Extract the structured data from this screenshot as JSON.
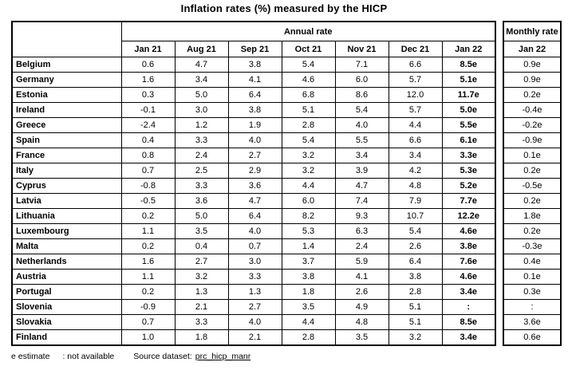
{
  "title": "Inflation rates (%) measured by the HICP",
  "chart_data": {
    "type": "table",
    "title": "Inflation rates (%) measured by the HICP",
    "annual_rate_label": "Annual rate",
    "monthly_rate_label": "Monthly rate",
    "annual_columns": [
      "Jan 21",
      "Aug 21",
      "Sep 21",
      "Oct 21",
      "Nov 21",
      "Dec 21",
      "Jan 22"
    ],
    "monthly_column": "Jan 22",
    "rows": [
      {
        "country": "Belgium",
        "annual": [
          "0.6",
          "4.7",
          "3.8",
          "5.4",
          "7.1",
          "6.6",
          "8.5e"
        ],
        "monthly_jan22": "0.9e"
      },
      {
        "country": "Germany",
        "annual": [
          "1.6",
          "3.4",
          "4.1",
          "4.6",
          "6.0",
          "5.7",
          "5.1e"
        ],
        "monthly_jan22": "0.9e"
      },
      {
        "country": "Estonia",
        "annual": [
          "0.3",
          "5.0",
          "6.4",
          "6.8",
          "8.6",
          "12.0",
          "11.7e"
        ],
        "monthly_jan22": "0.2e"
      },
      {
        "country": "Ireland",
        "annual": [
          "-0.1",
          "3.0",
          "3.8",
          "5.1",
          "5.4",
          "5.7",
          "5.0e"
        ],
        "monthly_jan22": "-0.4e"
      },
      {
        "country": "Greece",
        "annual": [
          "-2.4",
          "1.2",
          "1.9",
          "2.8",
          "4.0",
          "4.4",
          "5.5e"
        ],
        "monthly_jan22": "-0.2e"
      },
      {
        "country": "Spain",
        "annual": [
          "0.4",
          "3.3",
          "4.0",
          "5.4",
          "5.5",
          "6.6",
          "6.1e"
        ],
        "monthly_jan22": "-0.9e"
      },
      {
        "country": "France",
        "annual": [
          "0.8",
          "2.4",
          "2.7",
          "3.2",
          "3.4",
          "3.4",
          "3.3e"
        ],
        "monthly_jan22": "0.1e"
      },
      {
        "country": "Italy",
        "annual": [
          "0.7",
          "2.5",
          "2.9",
          "3.2",
          "3.9",
          "4.2",
          "5.3e"
        ],
        "monthly_jan22": "0.2e"
      },
      {
        "country": "Cyprus",
        "annual": [
          "-0.8",
          "3.3",
          "3.6",
          "4.4",
          "4.7",
          "4.8",
          "5.2e"
        ],
        "monthly_jan22": "-0.5e"
      },
      {
        "country": "Latvia",
        "annual": [
          "-0.5",
          "3.6",
          "4.7",
          "6.0",
          "7.4",
          "7.9",
          "7.7e"
        ],
        "monthly_jan22": "0.2e"
      },
      {
        "country": "Lithuania",
        "annual": [
          "0.2",
          "5.0",
          "6.4",
          "8.2",
          "9.3",
          "10.7",
          "12.2e"
        ],
        "monthly_jan22": "1.8e"
      },
      {
        "country": "Luxembourg",
        "annual": [
          "1.1",
          "3.5",
          "4.0",
          "5.3",
          "6.3",
          "5.4",
          "4.6e"
        ],
        "monthly_jan22": "0.2e"
      },
      {
        "country": "Malta",
        "annual": [
          "0.2",
          "0.4",
          "0.7",
          "1.4",
          "2.4",
          "2.6",
          "3.8e"
        ],
        "monthly_jan22": "-0.3e"
      },
      {
        "country": "Netherlands",
        "annual": [
          "1.6",
          "2.7",
          "3.0",
          "3.7",
          "5.9",
          "6.4",
          "7.6e"
        ],
        "monthly_jan22": "0.4e"
      },
      {
        "country": "Austria",
        "annual": [
          "1.1",
          "3.2",
          "3.3",
          "3.8",
          "4.1",
          "3.8",
          "4.6e"
        ],
        "monthly_jan22": "0.1e"
      },
      {
        "country": "Portugal",
        "annual": [
          "0.2",
          "1.3",
          "1.3",
          "1.8",
          "2.6",
          "2.8",
          "3.4e"
        ],
        "monthly_jan22": "0.3e"
      },
      {
        "country": "Slovenia",
        "annual": [
          "-0.9",
          "2.1",
          "2.7",
          "3.5",
          "4.9",
          "5.1",
          ":"
        ],
        "monthly_jan22": ":"
      },
      {
        "country": "Slovakia",
        "annual": [
          "0.7",
          "3.3",
          "4.0",
          "4.4",
          "4.8",
          "5.1",
          "8.5e"
        ],
        "monthly_jan22": "3.6e"
      },
      {
        "country": "Finland",
        "annual": [
          "1.0",
          "1.8",
          "2.1",
          "2.8",
          "3.5",
          "3.2",
          "3.4e"
        ],
        "monthly_jan22": "0.6e"
      }
    ]
  },
  "footer": {
    "estimate_note": "e estimate",
    "not_available_note": ": not available",
    "source_label": "Source dataset:",
    "source_link": "prc_hicp_manr"
  }
}
